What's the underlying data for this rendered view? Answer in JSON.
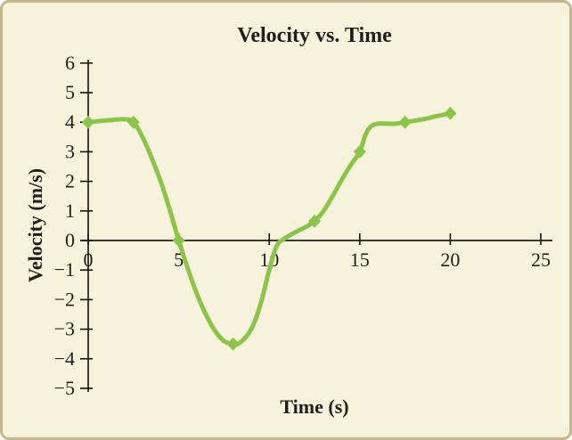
{
  "chart_data": {
    "type": "line",
    "title": "Velocity vs. Time",
    "xlabel": "Time (s)",
    "ylabel": "Velocity (m/s)",
    "xlim": [
      0,
      25
    ],
    "ylim": [
      -5,
      6
    ],
    "xticks": [
      0,
      5,
      10,
      15,
      20,
      25
    ],
    "yticks": [
      6,
      5,
      4,
      3,
      2,
      1,
      0,
      -1,
      -2,
      -3,
      -4,
      -5
    ],
    "grid": false,
    "legend": "none",
    "series": [
      {
        "name": "velocity",
        "marker": "diamond",
        "points": [
          [
            0,
            4
          ],
          [
            2.5,
            4
          ],
          [
            5,
            0
          ],
          [
            8,
            -3.5
          ],
          [
            12.5,
            0.65
          ],
          [
            15,
            3
          ],
          [
            17.5,
            4
          ],
          [
            20,
            4.3
          ]
        ],
        "curve_samples": [
          [
            0,
            4
          ],
          [
            1.2,
            4.07
          ],
          [
            2,
            4.1
          ],
          [
            2.5,
            4
          ],
          [
            3,
            3.5
          ],
          [
            3.5,
            2.8
          ],
          [
            4,
            2
          ],
          [
            4.5,
            1.05
          ],
          [
            5,
            0
          ],
          [
            5.5,
            -0.95
          ],
          [
            6,
            -1.8
          ],
          [
            6.5,
            -2.5
          ],
          [
            7,
            -3.05
          ],
          [
            7.5,
            -3.4
          ],
          [
            8,
            -3.5
          ],
          [
            8.4,
            -3.45
          ],
          [
            9,
            -3
          ],
          [
            9.5,
            -2.2
          ],
          [
            10,
            -1
          ],
          [
            10.4,
            -0.2
          ],
          [
            10.8,
            0.05
          ],
          [
            11.5,
            0.3
          ],
          [
            12,
            0.45
          ],
          [
            12.5,
            0.65
          ],
          [
            13,
            1
          ],
          [
            13.5,
            1.5
          ],
          [
            14,
            2.05
          ],
          [
            14.5,
            2.55
          ],
          [
            15,
            3
          ],
          [
            15.3,
            3.55
          ],
          [
            15.6,
            3.85
          ],
          [
            16,
            3.95
          ],
          [
            16.5,
            3.95
          ],
          [
            17,
            3.95
          ],
          [
            17.5,
            4
          ],
          [
            18.5,
            4.1
          ],
          [
            19.2,
            4.2
          ],
          [
            20,
            4.3
          ]
        ]
      }
    ]
  },
  "colors": {
    "background": "#f7f2db",
    "border": "#c3b78b",
    "line": "#8cc34b",
    "axis": "#201d1a",
    "text": "#201d1a"
  }
}
